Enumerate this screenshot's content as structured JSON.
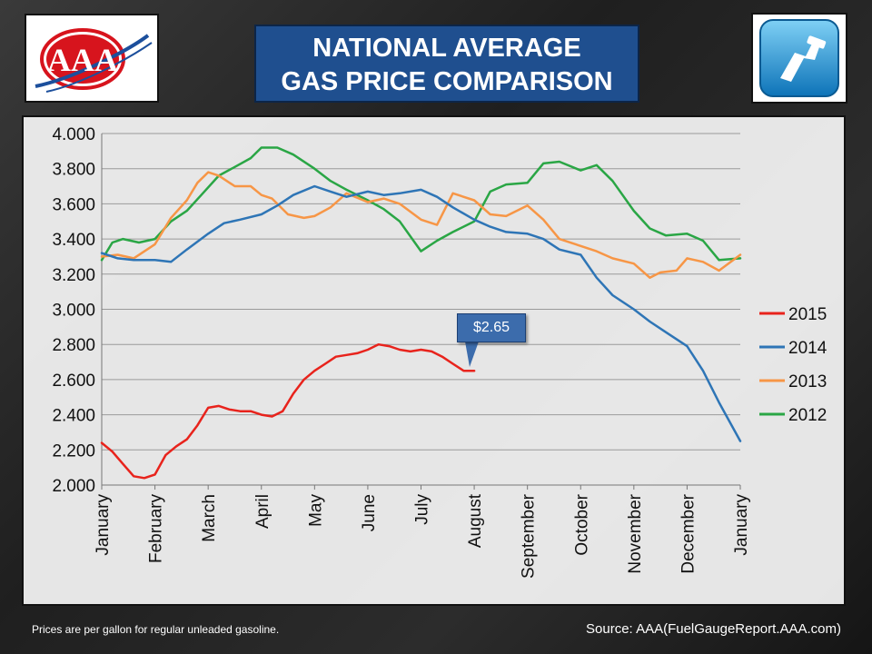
{
  "title": {
    "line1": "NATIONAL AVERAGE",
    "line2": "GAS PRICE COMPARISON"
  },
  "logos": {
    "left_icon": "aaa-logo-icon",
    "left_text": "AAA",
    "right_icon": "fuel-pump-icon"
  },
  "footnote": "Prices are per gallon for regular unleaded gasoline.",
  "source": "Source: AAA(FuelGaugeReport.AAA.com)",
  "callout": {
    "text": "$2.65",
    "color": "#3c6cac"
  },
  "chart_data": {
    "type": "line",
    "title": "",
    "xlabel": "",
    "ylabel": "",
    "ylim": [
      2.0,
      4.0
    ],
    "yticks": [
      "2.000",
      "2.200",
      "2.400",
      "2.600",
      "2.800",
      "3.000",
      "3.200",
      "3.400",
      "3.600",
      "3.800",
      "4.000"
    ],
    "months": [
      "January",
      "February",
      "March",
      "April",
      "May",
      "June",
      "July",
      "August",
      "September",
      "October",
      "November",
      "December",
      "January"
    ],
    "grid": "horizontal",
    "legend_position": "right",
    "series": [
      {
        "name": "2015",
        "color": "#e8231c",
        "x": [
          0,
          0.2,
          0.4,
          0.6,
          0.8,
          1.0,
          1.2,
          1.4,
          1.6,
          1.8,
          2.0,
          2.2,
          2.4,
          2.6,
          2.8,
          3.0,
          3.2,
          3.4,
          3.6,
          3.8,
          4.0,
          4.2,
          4.4,
          4.6,
          4.8,
          5.0,
          5.2,
          5.4,
          5.6,
          5.8,
          6.0,
          6.2,
          6.4,
          6.6,
          6.8,
          7.0
        ],
        "y": [
          2.24,
          2.19,
          2.12,
          2.05,
          2.04,
          2.06,
          2.17,
          2.22,
          2.26,
          2.34,
          2.44,
          2.45,
          2.43,
          2.42,
          2.42,
          2.4,
          2.39,
          2.42,
          2.52,
          2.6,
          2.65,
          2.69,
          2.73,
          2.74,
          2.75,
          2.77,
          2.8,
          2.79,
          2.77,
          2.76,
          2.77,
          2.76,
          2.73,
          2.69,
          2.65,
          2.65
        ]
      },
      {
        "name": "2014",
        "color": "#2e75b6",
        "x": [
          0,
          0.3,
          0.6,
          1.0,
          1.3,
          1.6,
          2.0,
          2.3,
          2.6,
          3.0,
          3.3,
          3.6,
          4.0,
          4.3,
          4.6,
          5.0,
          5.3,
          5.6,
          6.0,
          6.3,
          6.6,
          7.0,
          7.3,
          7.6,
          8.0,
          8.3,
          8.6,
          9.0,
          9.3,
          9.6,
          10.0,
          10.3,
          10.6,
          11.0,
          11.3,
          11.6,
          12.0
        ],
        "y": [
          3.32,
          3.29,
          3.28,
          3.28,
          3.27,
          3.34,
          3.43,
          3.49,
          3.51,
          3.54,
          3.59,
          3.65,
          3.7,
          3.67,
          3.64,
          3.67,
          3.65,
          3.66,
          3.68,
          3.64,
          3.58,
          3.51,
          3.47,
          3.44,
          3.43,
          3.4,
          3.34,
          3.31,
          3.18,
          3.08,
          3.0,
          2.93,
          2.87,
          2.79,
          2.65,
          2.47,
          2.25
        ]
      },
      {
        "name": "2013",
        "color": "#f79646",
        "x": [
          0,
          0.3,
          0.6,
          1.0,
          1.3,
          1.6,
          1.8,
          2.0,
          2.2,
          2.5,
          2.8,
          3.0,
          3.2,
          3.5,
          3.8,
          4.0,
          4.3,
          4.6,
          5.0,
          5.3,
          5.6,
          6.0,
          6.3,
          6.6,
          7.0,
          7.3,
          7.6,
          8.0,
          8.3,
          8.6,
          9.0,
          9.3,
          9.6,
          10.0,
          10.3,
          10.5,
          10.8,
          11.0,
          11.3,
          11.6,
          12.0
        ],
        "y": [
          3.3,
          3.31,
          3.29,
          3.37,
          3.52,
          3.62,
          3.72,
          3.78,
          3.76,
          3.7,
          3.7,
          3.65,
          3.63,
          3.54,
          3.52,
          3.53,
          3.58,
          3.66,
          3.61,
          3.63,
          3.6,
          3.51,
          3.48,
          3.66,
          3.62,
          3.54,
          3.53,
          3.59,
          3.51,
          3.4,
          3.36,
          3.33,
          3.29,
          3.26,
          3.18,
          3.21,
          3.22,
          3.29,
          3.27,
          3.22,
          3.31
        ]
      },
      {
        "name": "2012",
        "color": "#2aa645",
        "x": [
          0,
          0.2,
          0.4,
          0.7,
          1.0,
          1.3,
          1.6,
          1.9,
          2.2,
          2.5,
          2.8,
          3.0,
          3.3,
          3.6,
          4.0,
          4.3,
          4.6,
          5.0,
          5.3,
          5.6,
          6.0,
          6.3,
          6.6,
          7.0,
          7.3,
          7.6,
          8.0,
          8.3,
          8.6,
          9.0,
          9.3,
          9.6,
          10.0,
          10.3,
          10.6,
          11.0,
          11.3,
          11.6,
          12.0
        ],
        "y": [
          3.28,
          3.38,
          3.4,
          3.38,
          3.4,
          3.5,
          3.56,
          3.66,
          3.76,
          3.81,
          3.86,
          3.92,
          3.92,
          3.88,
          3.8,
          3.73,
          3.68,
          3.62,
          3.57,
          3.5,
          3.33,
          3.39,
          3.44,
          3.5,
          3.67,
          3.71,
          3.72,
          3.83,
          3.84,
          3.79,
          3.82,
          3.73,
          3.56,
          3.46,
          3.42,
          3.43,
          3.39,
          3.28,
          3.29
        ]
      }
    ]
  }
}
